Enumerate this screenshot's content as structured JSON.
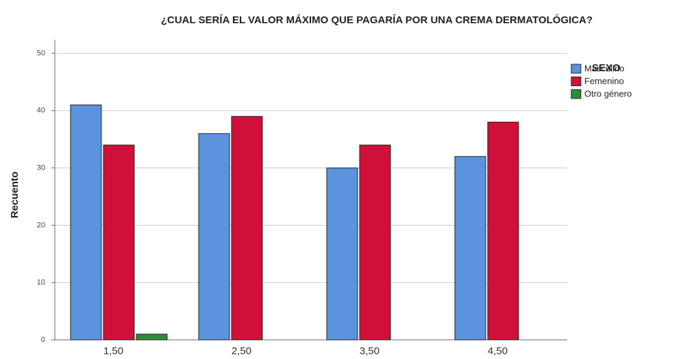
{
  "chart_data": {
    "type": "bar",
    "title": "¿CUAL SERÍA EL VALOR MÁXIMO QUE PAGARÍA POR UNA CREMA DERMATOLÓGICA?",
    "y_label": "Recuento",
    "legend_title": "SEXO",
    "categories": [
      "1,50",
      "2,50",
      "3,50",
      "4,50"
    ],
    "series": [
      {
        "name": "Masculino",
        "color": "#5b93de",
        "values": [
          41,
          36,
          30,
          32
        ]
      },
      {
        "name": "Femenino",
        "color": "#d0103a",
        "values": [
          34,
          39,
          34,
          38
        ]
      },
      {
        "name": "Otro género",
        "color": "#2e8b3a",
        "values": [
          1,
          null,
          null,
          null
        ]
      }
    ],
    "ylim": [
      0,
      50
    ],
    "yticks": [
      0,
      10,
      20,
      30,
      40,
      50
    ],
    "grid": true,
    "legend": "right"
  }
}
